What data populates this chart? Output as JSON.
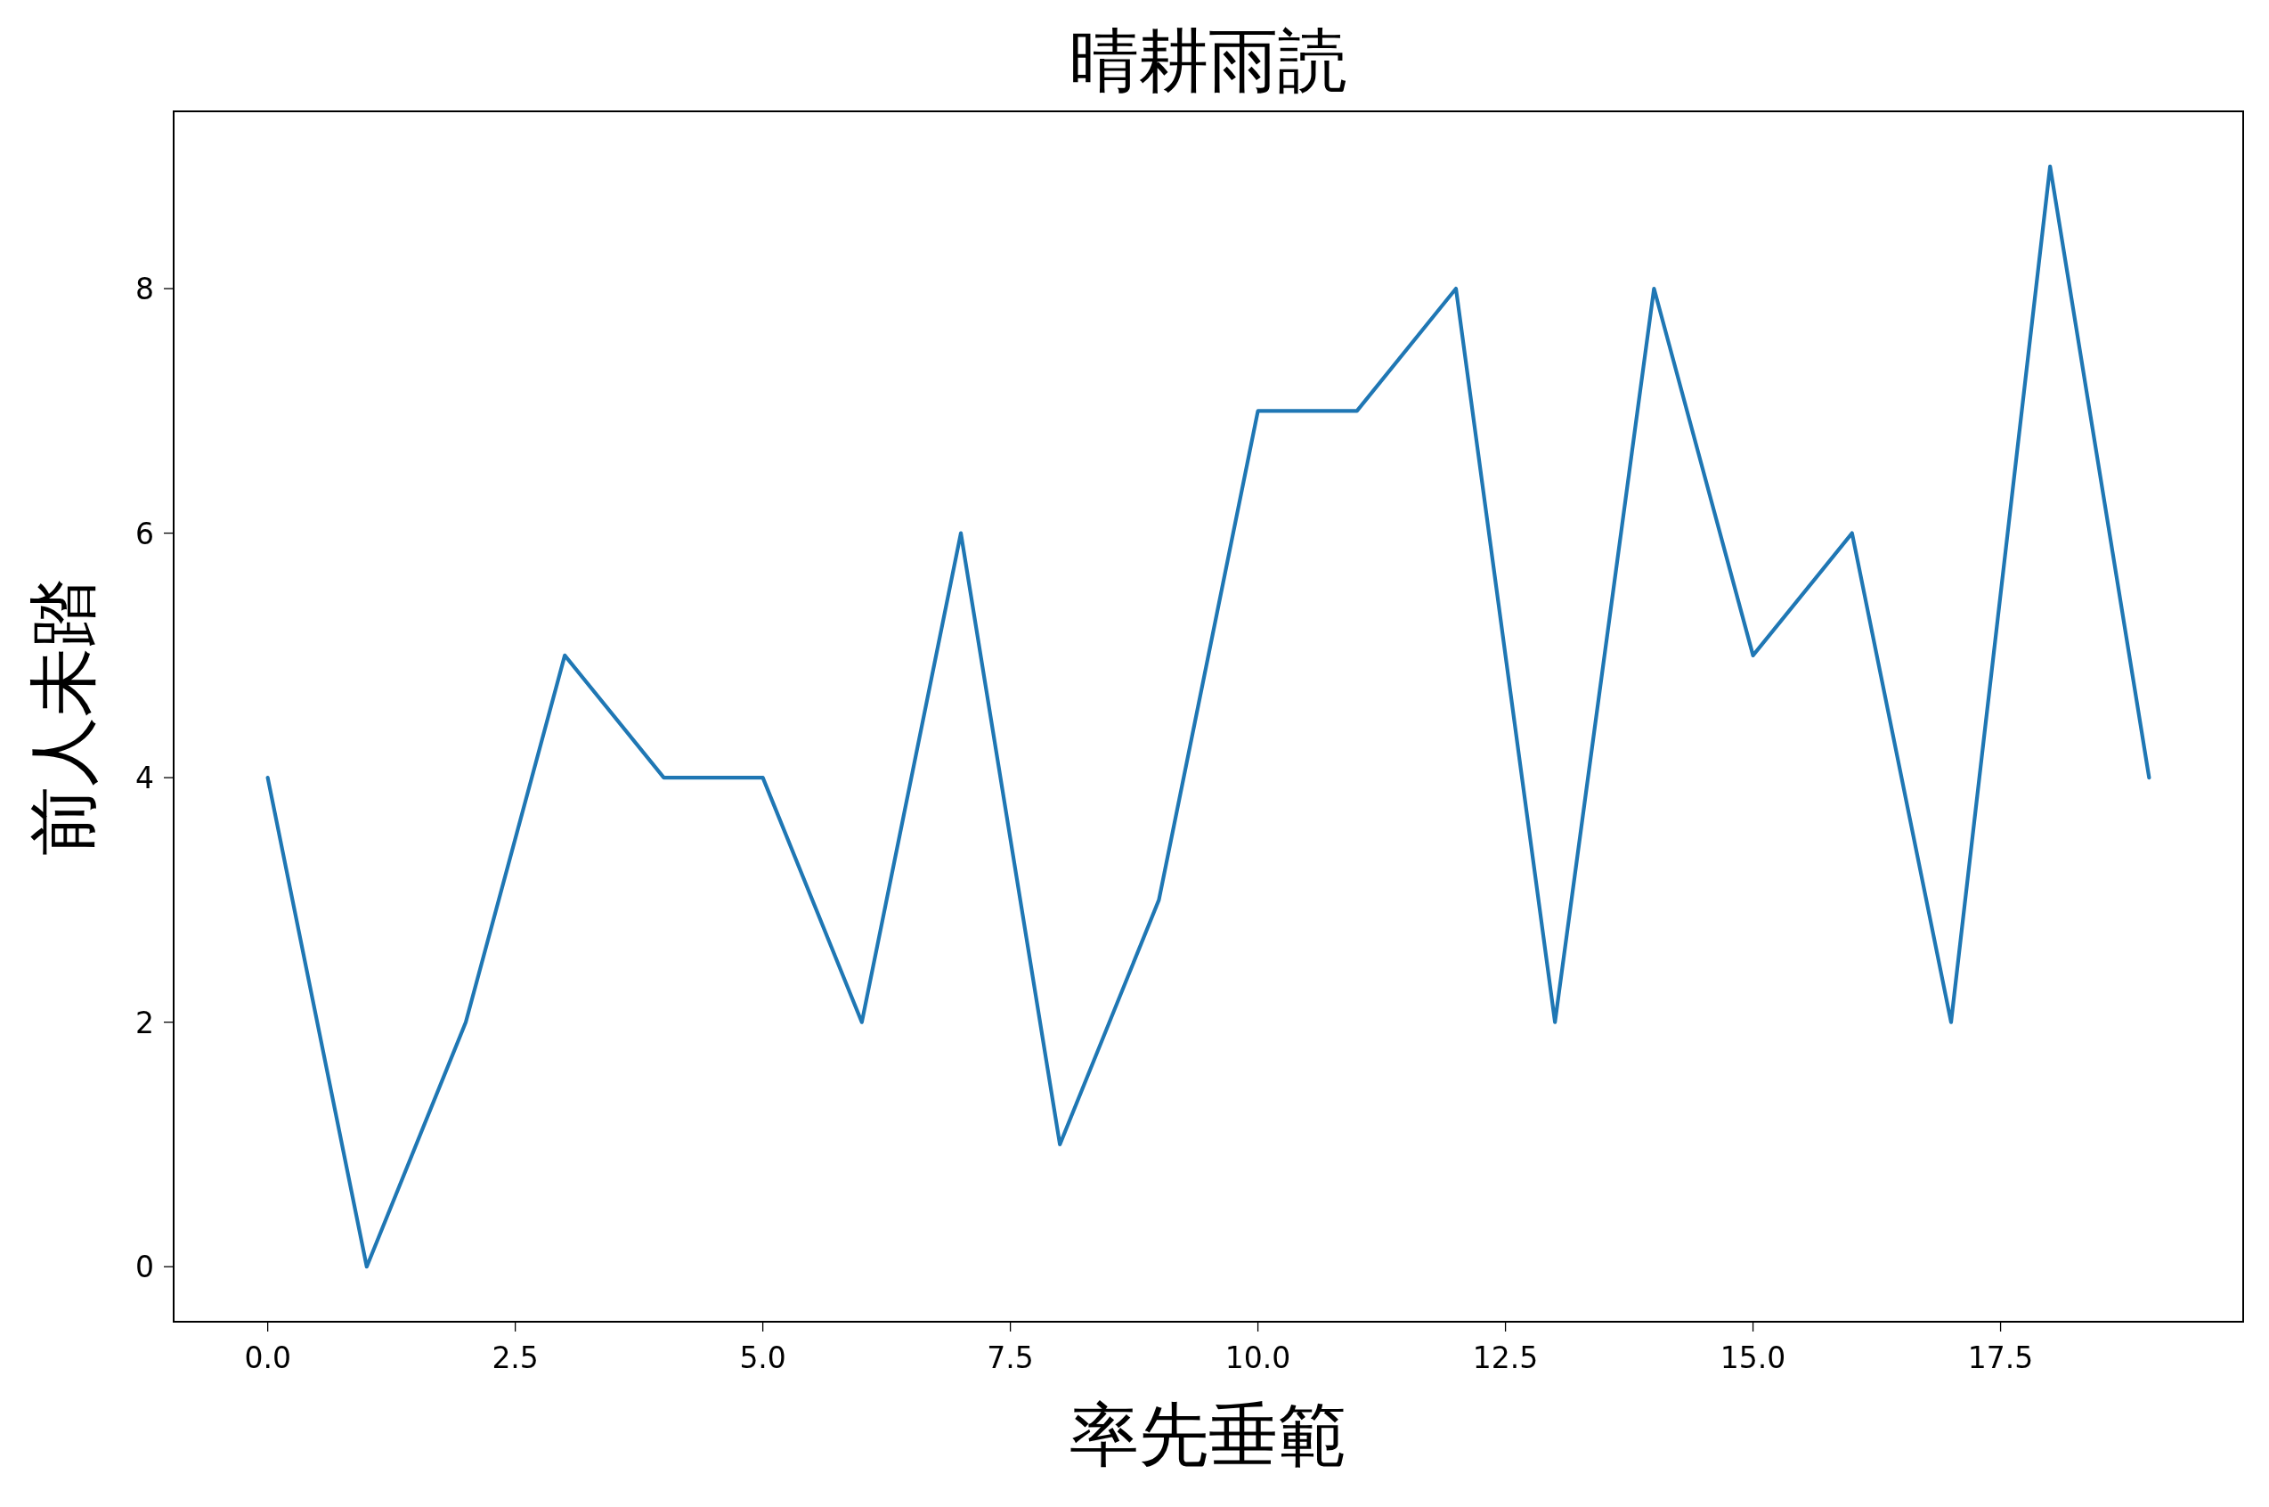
{
  "chart_data": {
    "type": "line",
    "title": "晴耕雨読",
    "xlabel": "率先垂範",
    "ylabel": "前人未踏",
    "x": [
      0,
      1,
      2,
      3,
      4,
      5,
      6,
      7,
      8,
      9,
      10,
      11,
      12,
      13,
      14,
      15,
      16,
      17,
      18,
      19
    ],
    "series": [
      {
        "color": "#1f77b4",
        "values": [
          4,
          0,
          2,
          5,
          4,
          4,
          2,
          6,
          1,
          3,
          7,
          7,
          8,
          2,
          8,
          5,
          6,
          2,
          9,
          4
        ]
      }
    ],
    "xlim": [
      -0.95,
      19.95
    ],
    "ylim": [
      -0.45,
      9.45
    ],
    "xticks": [
      {
        "value": 0,
        "label": "0.0"
      },
      {
        "value": 2.5,
        "label": "2.5"
      },
      {
        "value": 5,
        "label": "5.0"
      },
      {
        "value": 7.5,
        "label": "7.5"
      },
      {
        "value": 10,
        "label": "10.0"
      },
      {
        "value": 12.5,
        "label": "12.5"
      },
      {
        "value": 15,
        "label": "15.0"
      },
      {
        "value": 17.5,
        "label": "17.5"
      }
    ],
    "yticks": [
      0,
      2,
      4,
      6,
      8
    ],
    "grid": false,
    "marker": "none",
    "line_style": "solid"
  }
}
